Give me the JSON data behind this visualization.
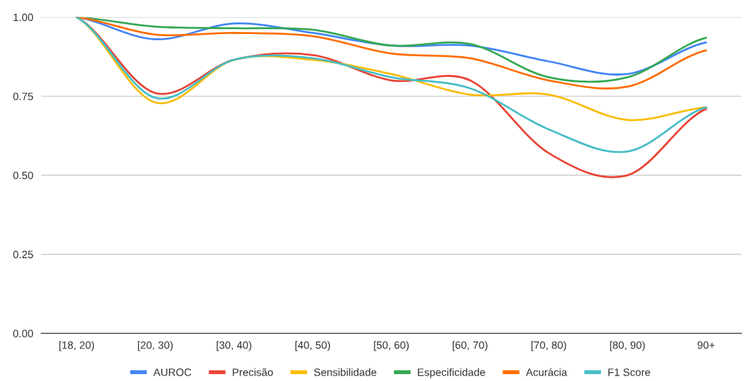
{
  "chart_data": {
    "type": "line",
    "categories": [
      "[18, 20)",
      "[20, 30)",
      "[30, 40)",
      "[40, 50)",
      "[50, 60)",
      "[60, 70)",
      "[70, 80)",
      "[80, 90)",
      "90+"
    ],
    "series": [
      {
        "name": "AUROC",
        "color": "#4285f4",
        "values": [
          1.0,
          0.93,
          0.98,
          0.95,
          0.91,
          0.91,
          0.86,
          0.82,
          0.92
        ]
      },
      {
        "name": "Precisão",
        "color": "#ea4335",
        "values": [
          1.0,
          0.76,
          0.865,
          0.88,
          0.8,
          0.8,
          0.57,
          0.5,
          0.71
        ]
      },
      {
        "name": "Sensibilidade",
        "color": "#fbbc04",
        "values": [
          1.0,
          0.73,
          0.865,
          0.865,
          0.82,
          0.755,
          0.755,
          0.675,
          0.715
        ]
      },
      {
        "name": "Especificidade",
        "color": "#34a853",
        "values": [
          1.0,
          0.97,
          0.965,
          0.96,
          0.91,
          0.915,
          0.81,
          0.81,
          0.935
        ]
      },
      {
        "name": "Acurácia",
        "color": "#ff6d01",
        "values": [
          1.0,
          0.945,
          0.95,
          0.94,
          0.885,
          0.87,
          0.8,
          0.78,
          0.895
        ]
      },
      {
        "name": "F1 Score",
        "color": "#46bdc6",
        "values": [
          1.0,
          0.745,
          0.865,
          0.87,
          0.81,
          0.775,
          0.645,
          0.575,
          0.715
        ]
      }
    ],
    "ylim": [
      0,
      1.0
    ],
    "yticks": [
      {
        "value": 0,
        "label": "0.00"
      },
      {
        "value": 0.25,
        "label": "0.25"
      },
      {
        "value": 0.5,
        "label": "0.50"
      },
      {
        "value": 0.75,
        "label": "0.75"
      },
      {
        "value": 1.0,
        "label": "1.00"
      }
    ],
    "grid": "y",
    "legend": "bottom",
    "marker": "none",
    "line_style": "solid"
  }
}
